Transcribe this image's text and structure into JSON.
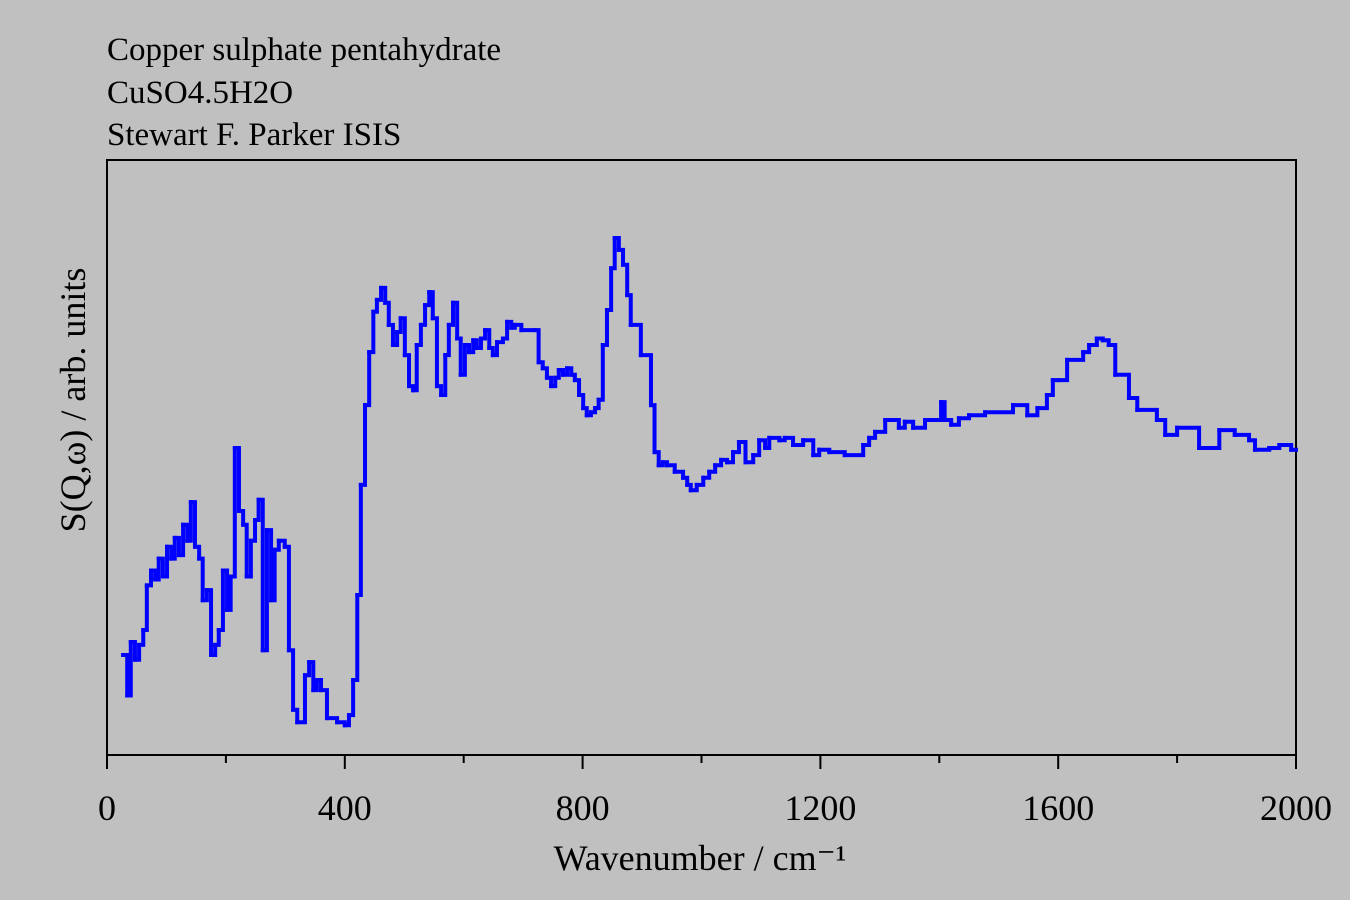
{
  "chart_data": {
    "type": "step",
    "title_lines": [
      "Copper sulphate pentahydrate",
      "CuSO4.5H2O",
      "Stewart F. Parker ISIS"
    ],
    "xlabel": "Wavenumber / cm⁻¹",
    "ylabel": "S(Q,ω) / arb. units",
    "xlim": [
      0,
      2000
    ],
    "ylim": [
      0,
      100
    ],
    "xticks": [
      0,
      400,
      800,
      1200,
      1600,
      2000
    ],
    "xminorticks": [
      200,
      600,
      1000,
      1400,
      1800
    ],
    "color": "#0000ff",
    "x": [
      27,
      34,
      40,
      47,
      54,
      61,
      67,
      74,
      81,
      87,
      94,
      101,
      108,
      114,
      121,
      128,
      135,
      141,
      148,
      155,
      161,
      168,
      175,
      182,
      188,
      195,
      202,
      208,
      215,
      222,
      229,
      235,
      242,
      249,
      255,
      262,
      269,
      276,
      282,
      289,
      299,
      306,
      313,
      320,
      333,
      340,
      347,
      353,
      360,
      370,
      387,
      400,
      407,
      414,
      421,
      427,
      434,
      441,
      448,
      454,
      461,
      468,
      474,
      481,
      488,
      494,
      501,
      508,
      515,
      521,
      528,
      535,
      542,
      548,
      555,
      562,
      569,
      575,
      582,
      589,
      595,
      602,
      609,
      616,
      622,
      629,
      636,
      643,
      649,
      656,
      666,
      673,
      680,
      686,
      697,
      720,
      726,
      733,
      740,
      747,
      754,
      760,
      767,
      774,
      781,
      787,
      794,
      801,
      807,
      814,
      821,
      827,
      834,
      841,
      848,
      854,
      861,
      868,
      875,
      881,
      898,
      915,
      921,
      928,
      935,
      942,
      955,
      969,
      976,
      982,
      992,
      1003,
      1013,
      1023,
      1033,
      1043,
      1053,
      1063,
      1074,
      1087,
      1097,
      1107,
      1114,
      1131,
      1140,
      1154,
      1171,
      1188,
      1198,
      1215,
      1241,
      1272,
      1282,
      1292,
      1309,
      1332,
      1342,
      1356,
      1376,
      1403,
      1409,
      1420,
      1433,
      1450,
      1477,
      1524,
      1548,
      1565,
      1581,
      1591,
      1601,
      1615,
      1642,
      1652,
      1665,
      1675,
      1685,
      1696,
      1719,
      1733,
      1766,
      1780,
      1800,
      1837,
      1871,
      1897,
      1921,
      1931,
      1955,
      1972,
      1992
    ],
    "values": [
      16.8,
      10,
      19,
      16,
      18.5,
      21,
      28.5,
      31,
      29.5,
      33,
      30,
      35,
      33,
      36.5,
      33.6,
      38.7,
      36,
      42.5,
      35,
      33,
      26,
      27.7,
      16.8,
      18.5,
      21,
      31,
      24.4,
      30,
      51.6,
      41,
      38.7,
      30,
      36,
      39.5,
      42.9,
      17.6,
      37.8,
      26,
      34.5,
      36,
      35,
      17.6,
      7.6,
      5.5,
      13.4,
      15.6,
      10.9,
      12.6,
      10.9,
      6.2,
      5.5,
      5,
      6.7,
      12.6,
      26.9,
      45.4,
      58.8,
      67.7,
      74.5,
      76.5,
      78.5,
      76,
      72.3,
      68.9,
      71.1,
      73.4,
      67.2,
      62,
      61.3,
      68.9,
      72.3,
      75.6,
      77.8,
      73.4,
      62,
      60.5,
      67.2,
      72.3,
      76,
      70,
      63.9,
      68.9,
      67.7,
      69.7,
      68.4,
      70,
      71.4,
      68.4,
      67.2,
      69.4,
      70,
      72.8,
      71.8,
      72.3,
      71.4,
      71.4,
      66,
      65,
      63.4,
      62,
      63.4,
      64.7,
      63.9,
      65,
      63.9,
      63,
      60.5,
      58.3,
      57.1,
      57.6,
      58.3,
      59.7,
      68.9,
      74.8,
      81.8,
      86.9,
      84.9,
      82.4,
      77.3,
      72.3,
      67.2,
      58.8,
      50.9,
      48.7,
      49.2,
      48.7,
      47.6,
      46.6,
      45.4,
      44.5,
      45.4,
      46.6,
      47.6,
      48.7,
      49.6,
      49.2,
      50.9,
      52.6,
      49.2,
      50.4,
      52.9,
      51.6,
      53.3,
      52.9,
      53.3,
      52.1,
      52.9,
      50.4,
      51.3,
      50.9,
      50.4,
      52.1,
      53.3,
      54.3,
      56.3,
      55,
      56,
      55,
      56.3,
      59.3,
      56.3,
      55.5,
      56.6,
      57.1,
      57.6,
      58.8,
      57.1,
      58.3,
      60.5,
      63,
      63,
      66.4,
      67.7,
      68.9,
      70,
      69.7,
      68.9,
      63.9,
      60,
      58,
      56.3,
      53.8,
      55,
      51.6,
      54.6,
      53.8,
      52.9,
      51.3,
      51.6,
      52.1,
      51.3
    ]
  }
}
